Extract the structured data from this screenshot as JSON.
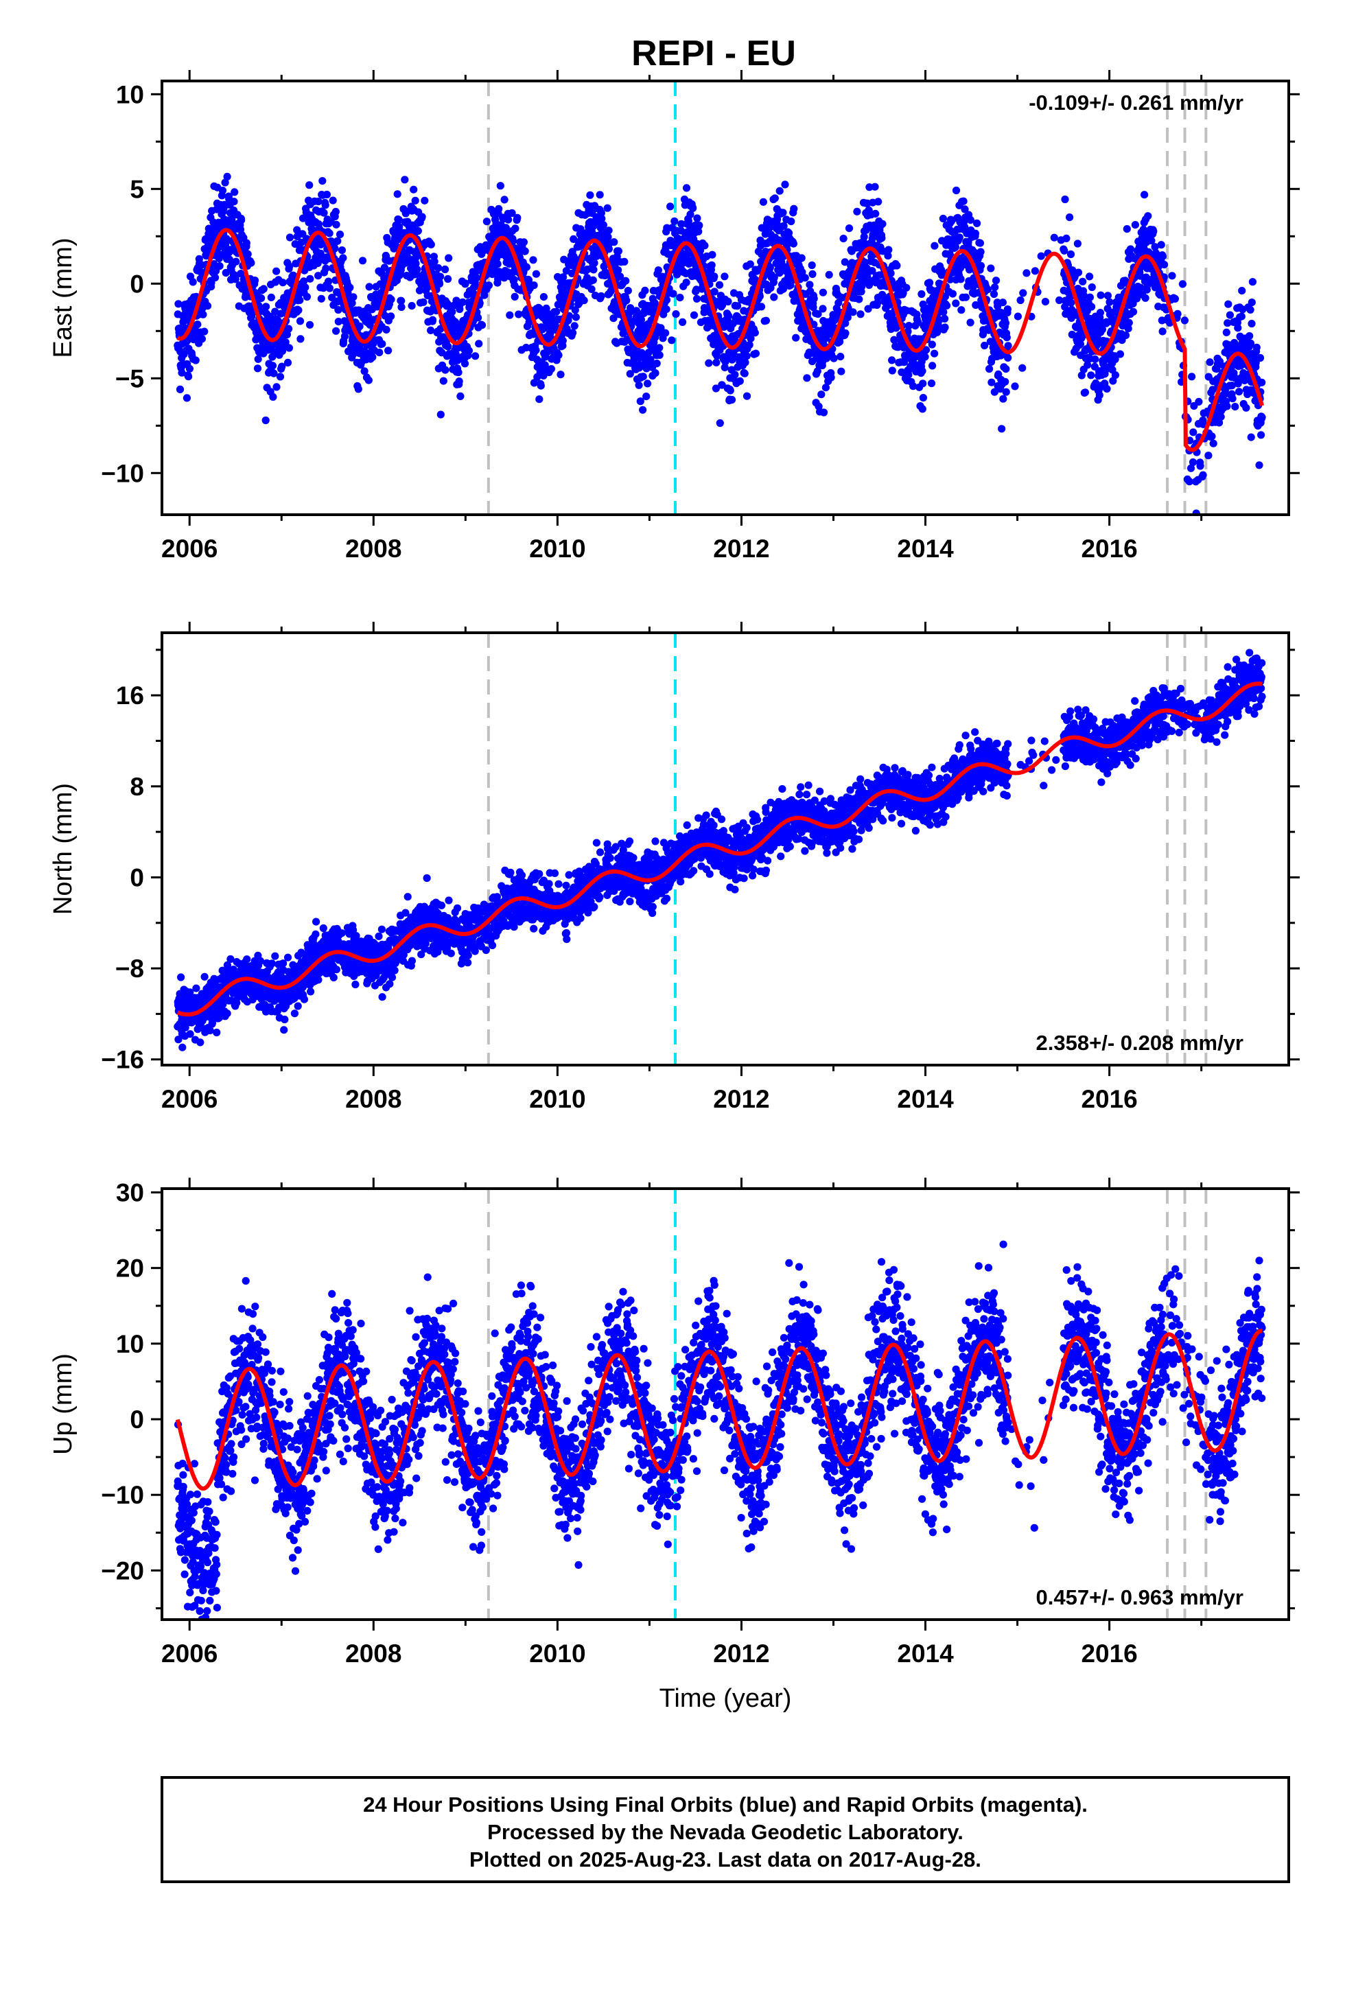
{
  "chart_data": {
    "type": "scatter",
    "title": "REPI - EU",
    "xlabel": "Time (year)",
    "xlim": [
      2005.7,
      2017.95
    ],
    "x_ticks": [
      2006,
      2008,
      2010,
      2012,
      2014,
      2016
    ],
    "colors": {
      "points": "#0000ff",
      "fit": "#ff0000",
      "event_gray": "#c0c0c0",
      "event_cyan": "#00e5ee"
    },
    "event_lines": [
      {
        "x": 2009.25,
        "color": "gray"
      },
      {
        "x": 2011.28,
        "color": "cyan"
      },
      {
        "x": 2016.63,
        "color": "gray"
      },
      {
        "x": 2016.82,
        "color": "gray"
      },
      {
        "x": 2017.05,
        "color": "gray"
      }
    ],
    "panels": [
      {
        "name": "east",
        "ylabel": "East (mm)",
        "ylim": [
          -12.2,
          10.7
        ],
        "y_ticks": [
          10,
          5,
          0,
          -5,
          -10
        ],
        "rate_text": "-0.109+/- 0.261 mm/yr",
        "rate_position": "top-right",
        "fit": {
          "offset": 0.0,
          "trend": -0.109,
          "amplitude": 2.9,
          "amp_trend": -0.03,
          "phase": 2006.15,
          "noise": 1.3,
          "steps": [
            {
              "x": 2016.82,
              "dy": -5.0
            }
          ]
        }
      },
      {
        "name": "north",
        "ylabel": "North (mm)",
        "ylim": [
          -16.5,
          21.5
        ],
        "y_ticks": [
          16,
          8,
          0,
          -8,
          -16
        ],
        "rate_text": "2.358+/- 0.208 mm/yr",
        "rate_position": "bottom-right",
        "fit": {
          "offset": -11.5,
          "trend": 2.358,
          "amplitude": 0.9,
          "amp_trend": 0.0,
          "phase": 2006.3,
          "noise": 1.1,
          "steps": []
        }
      },
      {
        "name": "up",
        "ylabel": "Up (mm)",
        "ylim": [
          -26.5,
          30.5
        ],
        "y_ticks": [
          30,
          20,
          10,
          0,
          -10,
          -20
        ],
        "rate_text": "0.457+/- 0.963 mm/yr",
        "rate_position": "bottom-right",
        "fit": {
          "offset": -1.5,
          "trend": 0.457,
          "amplitude": 7.8,
          "amp_trend": 0.0,
          "phase": 2006.4,
          "noise": 4.2,
          "steps": []
        }
      }
    ],
    "time_range": [
      2005.87,
      2017.66
    ]
  },
  "footer": {
    "line1": "24 Hour Positions Using Final Orbits (blue) and Rapid Orbits (magenta).",
    "line2": "Processed by the Nevada Geodetic Laboratory.",
    "line3": "Plotted on 2025-Aug-23. Last data on 2017-Aug-28."
  }
}
